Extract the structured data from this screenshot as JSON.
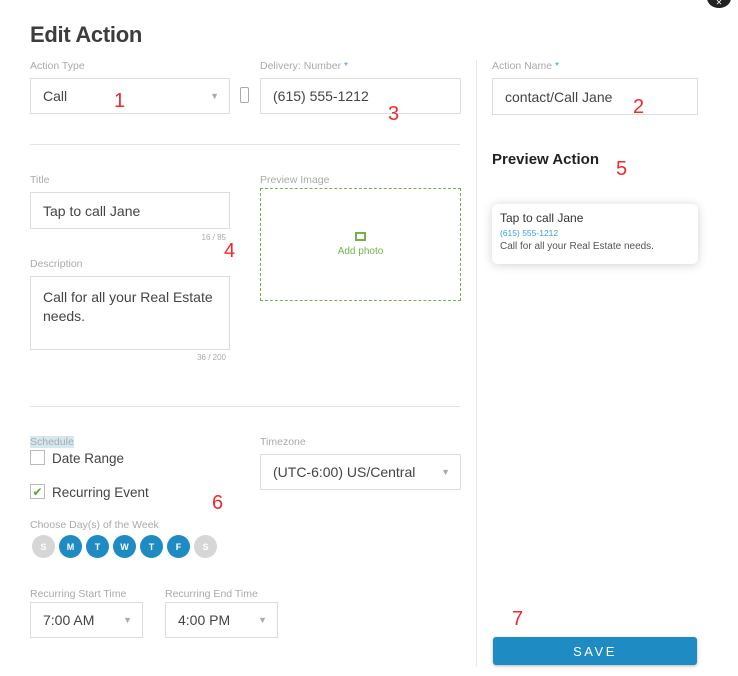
{
  "title": "Edit Action",
  "action_type": {
    "label": "Action Type",
    "value": "Call"
  },
  "delivery": {
    "label": "Delivery: Number",
    "required": "*",
    "value": "(615) 555-1212"
  },
  "action_name": {
    "label": "Action Name",
    "required": "*",
    "value": "contact/Call Jane"
  },
  "title_field": {
    "label": "Title",
    "value": "Tap to call Jane",
    "count": "16 / 85"
  },
  "description": {
    "label": "Description",
    "value": "Call for all your Real Estate needs.",
    "count": "36 / 200"
  },
  "preview_image": {
    "label": "Preview Image",
    "add": "Add photo"
  },
  "preview": {
    "heading": "Preview Action",
    "title": "Tap to call Jane",
    "number": "(615) 555-1212",
    "description": "Call for all your Real Estate needs."
  },
  "schedule": {
    "label": "Schedule",
    "date_range": "Date Range",
    "date_range_checked": false,
    "recurring": "Recurring Event",
    "recurring_checked": true,
    "days_label": "Choose Day(s) of the Week",
    "days": [
      {
        "l": "S",
        "on": false
      },
      {
        "l": "M",
        "on": true
      },
      {
        "l": "T",
        "on": true
      },
      {
        "l": "W",
        "on": true
      },
      {
        "l": "T",
        "on": true
      },
      {
        "l": "F",
        "on": true
      },
      {
        "l": "S",
        "on": false
      }
    ],
    "start_label": "Recurring Start Time",
    "start": "7:00 AM",
    "end_label": "Recurring End Time",
    "end": "4:00 PM"
  },
  "timezone": {
    "label": "Timezone",
    "value": "(UTC-6:00) US/Central"
  },
  "save": "SAVE",
  "annotations": [
    "1",
    "2",
    "3",
    "4",
    "5",
    "6",
    "7"
  ],
  "colors": {
    "accent": "#1e8bc3",
    "day_off": "#d6d6d6",
    "photo_border": "#6fb34a",
    "annotation": "#f02a2a"
  }
}
